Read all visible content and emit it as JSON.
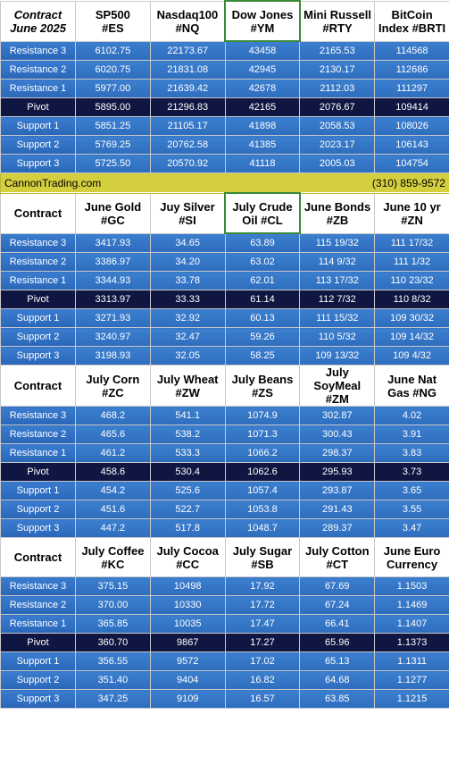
{
  "sections": [
    {
      "corner": "Contract\nJune 2025",
      "columns": [
        "SP500\n#ES",
        "Nasdaq100\n#NQ",
        "Dow Jones\n#YM",
        "Mini Russell\n#RTY",
        "BitCoin\nIndex #BRTI"
      ],
      "rows": [
        {
          "label": "Resistance 3",
          "values": [
            "6102.75",
            "22173.67",
            "43458",
            "2165.53",
            "114568"
          ]
        },
        {
          "label": "Resistance 2",
          "values": [
            "6020.75",
            "21831.08",
            "42945",
            "2130.17",
            "112686"
          ]
        },
        {
          "label": "Resistance 1",
          "values": [
            "5977.00",
            "21639.42",
            "42678",
            "2112.03",
            "111297"
          ]
        },
        {
          "label": "Pivot",
          "values": [
            "5895.00",
            "21296.83",
            "42165",
            "2076.67",
            "109414"
          ]
        },
        {
          "label": "Support 1",
          "values": [
            "5851.25",
            "21105.17",
            "41898",
            "2058.53",
            "108026"
          ]
        },
        {
          "label": "Support 2",
          "values": [
            "5769.25",
            "20762.58",
            "41385",
            "2023.17",
            "106143"
          ]
        },
        {
          "label": "Support 3",
          "values": [
            "5725.50",
            "20570.92",
            "41118",
            "2005.03",
            "104754"
          ]
        }
      ]
    },
    {
      "corner": "Contract",
      "columns": [
        "June Gold\n#GC",
        "Juy Silver\n#SI",
        "July Crude\nOil #CL",
        "June Bonds\n#ZB",
        "June 10 yr\n#ZN"
      ],
      "rows": [
        {
          "label": "Resistance 3",
          "values": [
            "3417.93",
            "34.65",
            "63.89",
            "115 19/32",
            "111 17/32"
          ]
        },
        {
          "label": "Resistance 2",
          "values": [
            "3386.97",
            "34.20",
            "63.02",
            "114  9/32",
            "111  1/32"
          ]
        },
        {
          "label": "Resistance 1",
          "values": [
            "3344.93",
            "33.78",
            "62.01",
            "113 17/32",
            "110 23/32"
          ]
        },
        {
          "label": "Pivot",
          "values": [
            "3313.97",
            "33.33",
            "61.14",
            "112  7/32",
            "110  8/32"
          ]
        },
        {
          "label": "Support 1",
          "values": [
            "3271.93",
            "32.92",
            "60.13",
            "111 15/32",
            "109 30/32"
          ]
        },
        {
          "label": "Support 2",
          "values": [
            "3240.97",
            "32.47",
            "59.26",
            "110  5/32",
            "109 14/32"
          ]
        },
        {
          "label": "Support 3",
          "values": [
            "3198.93",
            "32.05",
            "58.25",
            "109 13/32",
            "109  4/32"
          ]
        }
      ]
    },
    {
      "corner": "Contract",
      "columns": [
        "July Corn\n#ZC",
        "July  Wheat\n#ZW",
        "July Beans\n#ZS",
        "July\nSoyMeal\n#ZM",
        "June Nat\nGas #NG"
      ],
      "rows": [
        {
          "label": "Resistance 3",
          "values": [
            "468.2",
            "541.1",
            "1074.9",
            "302.87",
            "4.02"
          ]
        },
        {
          "label": "Resistance 2",
          "values": [
            "465.6",
            "538.2",
            "1071.3",
            "300.43",
            "3.91"
          ]
        },
        {
          "label": "Resistance 1",
          "values": [
            "461.2",
            "533.3",
            "1066.2",
            "298.37",
            "3.83"
          ]
        },
        {
          "label": "Pivot",
          "values": [
            "458.6",
            "530.4",
            "1062.6",
            "295.93",
            "3.73"
          ]
        },
        {
          "label": "Support 1",
          "values": [
            "454.2",
            "525.6",
            "1057.4",
            "293.87",
            "3.65"
          ]
        },
        {
          "label": "Support 2",
          "values": [
            "451.6",
            "522.7",
            "1053.8",
            "291.43",
            "3.55"
          ]
        },
        {
          "label": "Support 3",
          "values": [
            "447.2",
            "517.8",
            "1048.7",
            "289.37",
            "3.47"
          ]
        }
      ]
    },
    {
      "corner": "Contract",
      "columns": [
        "July Coffee\n#KC",
        "July Cocoa\n#CC",
        "July Sugar\n#SB",
        "July Cotton\n#CT",
        "June Euro\nCurrency"
      ],
      "rows": [
        {
          "label": "Resistance 3",
          "values": [
            "375.15",
            "10498",
            "17.92",
            "67.69",
            "1.1503"
          ]
        },
        {
          "label": "Resistance 2",
          "values": [
            "370.00",
            "10330",
            "17.72",
            "67.24",
            "1.1469"
          ]
        },
        {
          "label": "Resistance 1",
          "values": [
            "365.85",
            "10035",
            "17.47",
            "66.41",
            "1.1407"
          ]
        },
        {
          "label": "Pivot",
          "values": [
            "360.70",
            "9867",
            "17.27",
            "65.96",
            "1.1373"
          ]
        },
        {
          "label": "Support 1",
          "values": [
            "356.55",
            "9572",
            "17.02",
            "65.13",
            "1.1311"
          ]
        },
        {
          "label": "Support 2",
          "values": [
            "351.40",
            "9404",
            "16.82",
            "64.68",
            "1.1277"
          ]
        },
        {
          "label": "Support 3",
          "values": [
            "347.25",
            "9109",
            "16.57",
            "63.85",
            "1.1215"
          ]
        }
      ]
    }
  ],
  "banner": {
    "site": "CannonTrading.com",
    "phone": "(310) 859-9572"
  },
  "colors": {
    "header_bg": "#ffffff",
    "row_blue": "#3576c8",
    "pivot_navy": "#0f1642",
    "banner_yellow": "#d4cf3f",
    "selected_border": "#3a8a3a"
  }
}
